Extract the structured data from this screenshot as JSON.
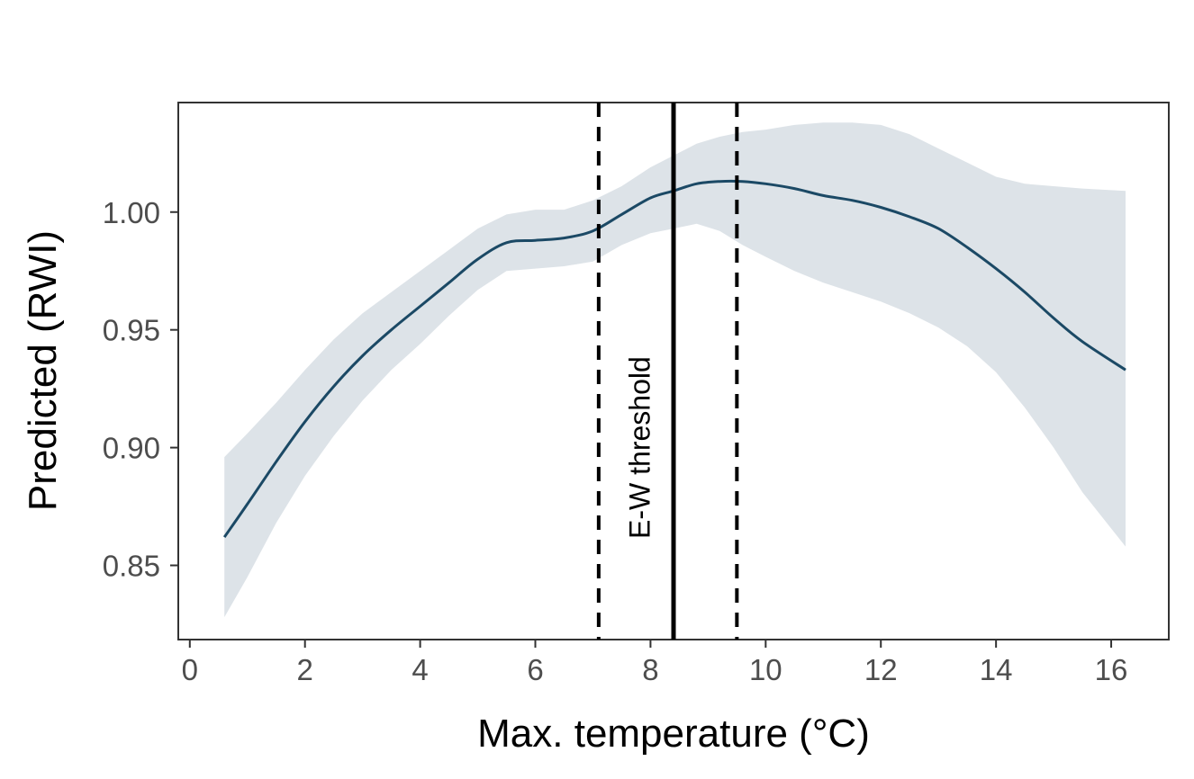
{
  "chart_data": {
    "type": "line",
    "title": "",
    "xlabel": "Max. temperature (°C)",
    "ylabel": "Predicted (RWI)",
    "xlim": [
      -0.2,
      17.0
    ],
    "ylim": [
      0.8185,
      1.0465
    ],
    "x_ticks": [
      0,
      2,
      4,
      6,
      8,
      10,
      12,
      14,
      16
    ],
    "x_tick_labels": [
      "0",
      "2",
      "4",
      "6",
      "8",
      "10",
      "12",
      "14",
      "16"
    ],
    "y_ticks": [
      0.85,
      0.9,
      0.95,
      1.0
    ],
    "y_tick_labels": [
      "0.85",
      "0.90",
      "0.95",
      "1.00"
    ],
    "grid": false,
    "series": [
      {
        "color": "#1b4965",
        "ribbon_color": "#dde3e8",
        "x": [
          0.6,
          1.0,
          1.5,
          2.0,
          2.5,
          3.0,
          3.5,
          4.0,
          4.5,
          5.0,
          5.5,
          6.0,
          6.5,
          7.0,
          7.5,
          8.0,
          8.4,
          8.8,
          9.2,
          9.6,
          10.0,
          10.5,
          11.0,
          11.5,
          12.0,
          12.5,
          13.0,
          13.5,
          14.0,
          14.5,
          15.0,
          15.5,
          16.25
        ],
        "y": [
          0.862,
          0.876,
          0.894,
          0.911,
          0.926,
          0.939,
          0.95,
          0.96,
          0.97,
          0.98,
          0.987,
          0.988,
          0.989,
          0.992,
          0.999,
          1.006,
          1.009,
          1.012,
          1.013,
          1.013,
          1.012,
          1.01,
          1.007,
          1.005,
          1.002,
          0.998,
          0.993,
          0.985,
          0.976,
          0.966,
          0.955,
          0.945,
          0.933
        ],
        "lower": [
          0.828,
          0.845,
          0.868,
          0.888,
          0.905,
          0.92,
          0.933,
          0.944,
          0.956,
          0.967,
          0.975,
          0.976,
          0.977,
          0.979,
          0.986,
          0.991,
          0.993,
          0.995,
          0.992,
          0.986,
          0.981,
          0.975,
          0.97,
          0.966,
          0.962,
          0.957,
          0.951,
          0.943,
          0.932,
          0.917,
          0.9,
          0.881,
          0.858
        ],
        "upper": [
          0.896,
          0.906,
          0.919,
          0.933,
          0.946,
          0.957,
          0.966,
          0.975,
          0.984,
          0.993,
          0.999,
          1.001,
          1.001,
          1.005,
          1.011,
          1.019,
          1.024,
          1.029,
          1.032,
          1.034,
          1.035,
          1.037,
          1.038,
          1.038,
          1.037,
          1.033,
          1.027,
          1.021,
          1.015,
          1.012,
          1.011,
          1.01,
          1.009
        ]
      }
    ],
    "vlines": [
      {
        "x": 7.1,
        "style": "dashed",
        "color": "#000000"
      },
      {
        "x": 8.4,
        "style": "solid",
        "color": "#000000"
      },
      {
        "x": 9.5,
        "style": "dashed",
        "color": "#000000"
      }
    ],
    "annotations": [
      {
        "text": "E-W threshold",
        "x": 7.8,
        "y": 0.9,
        "rotation": -90
      }
    ]
  }
}
